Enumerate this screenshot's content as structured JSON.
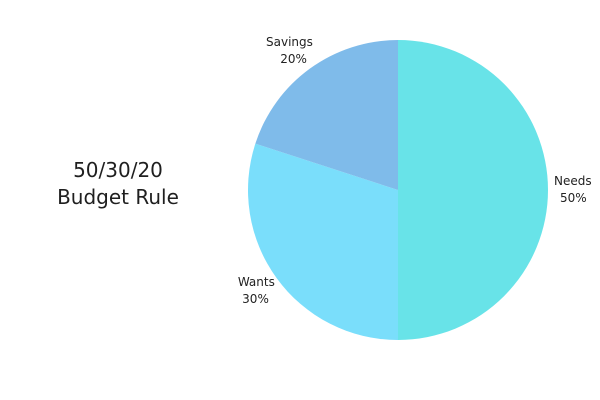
{
  "chart_data": {
    "type": "pie",
    "title": [
      "50/30/20",
      "Budget Rule"
    ],
    "slices": [
      {
        "label": "Needs",
        "value": 50,
        "value_label": "50%",
        "color": "#68e3e8"
      },
      {
        "label": "Wants",
        "value": 30,
        "value_label": "30%",
        "color": "#7adefb"
      },
      {
        "label": "Savings",
        "value": 20,
        "value_label": "20%",
        "color": "#7fbbea"
      }
    ],
    "start_angle": "12 o'clock",
    "direction": "clockwise",
    "legend": "none"
  }
}
